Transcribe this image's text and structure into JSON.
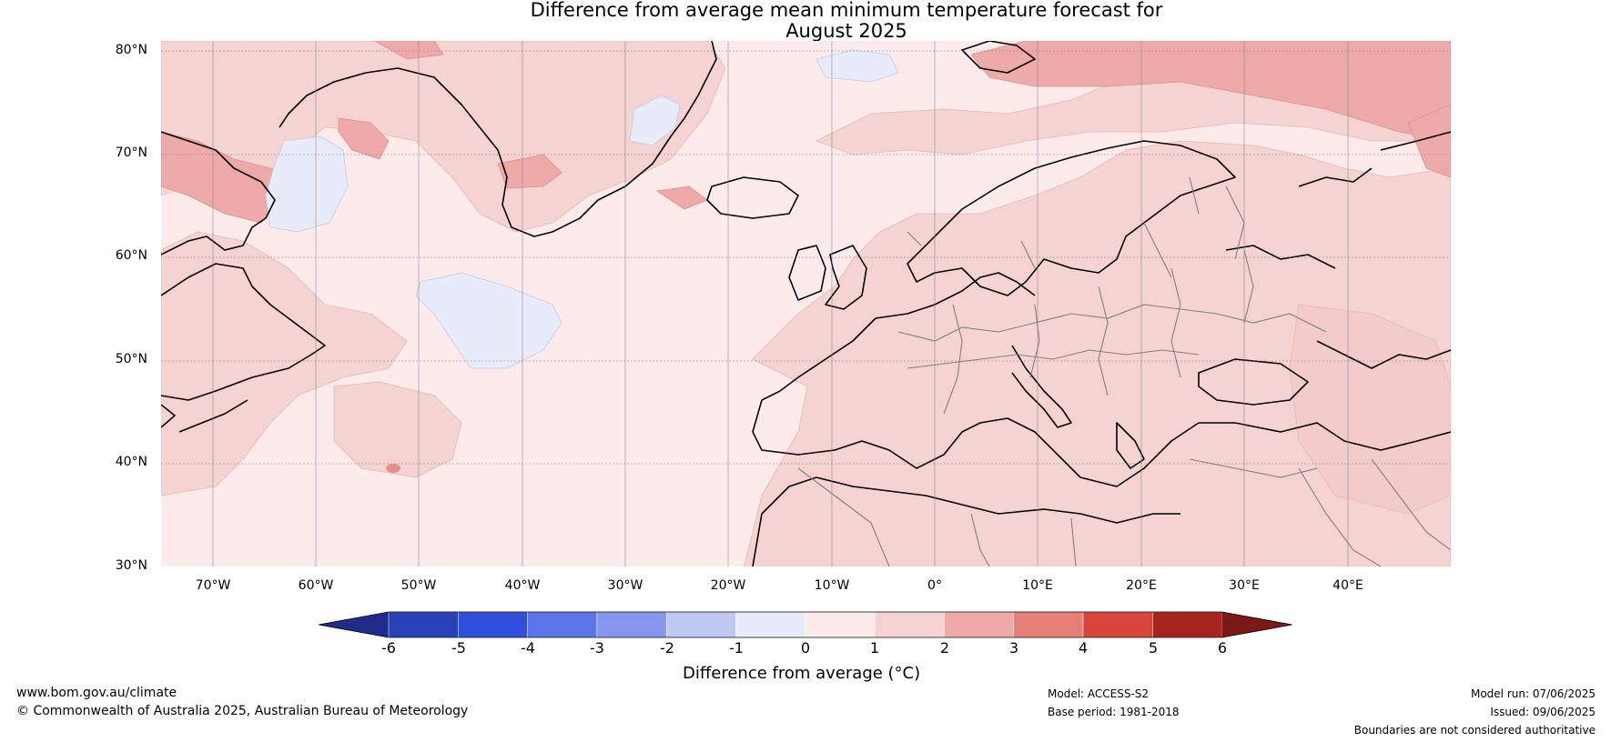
{
  "title": {
    "line1": "Difference from average mean minimum temperature forecast for",
    "line2": "August 2025"
  },
  "map": {
    "region": "North Atlantic and Europe",
    "latitude_labels": [
      "80°N",
      "70°N",
      "60°N",
      "50°N",
      "40°N",
      "30°N"
    ],
    "longitude_labels": [
      "70°W",
      "60°W",
      "50°W",
      "40°W",
      "30°W",
      "20°W",
      "10°W",
      "0°",
      "10°E",
      "20°E",
      "30°E",
      "40°E"
    ],
    "extent": {
      "lon_min": -75,
      "lon_max": 50,
      "lat_min": 30,
      "lat_max": 81
    },
    "colors": {
      "background_0_to_1": "#fcebea",
      "band_1_to_2": "#f5d3d2",
      "band_2_to_3": "#eeaaa8",
      "band_neg1_to_0": "#e8ecfa",
      "coastline": "#000000",
      "borders": "#808080",
      "gridlines": "#7f7f7f"
    }
  },
  "colorbar": {
    "tick_labels": [
      "-6",
      "-5",
      "-4",
      "-3",
      "-2",
      "-1",
      "0",
      "1",
      "2",
      "3",
      "4",
      "5",
      "6"
    ],
    "colors": [
      "#1f2c8a",
      "#2840b8",
      "#2f4fdc",
      "#5c74e8",
      "#8596ec",
      "#bfc8f3",
      "#e8ecfa",
      "#fcebea",
      "#f5d3d2",
      "#eeaaa8",
      "#e57f78",
      "#d9453a",
      "#a8251f",
      "#7a1915"
    ],
    "label": "Difference from average (°C)"
  },
  "footer": {
    "website": "www.bom.gov.au/climate",
    "copyright": "© Commonwealth of Australia 2025, Australian Bureau of Meteorology",
    "model": "Model: ACCESS-S2",
    "base_period": "Base period: 1981-2018",
    "model_run": "Model run: 07/06/2025",
    "issued": "Issued: 09/06/2025",
    "disclaimer": "Boundaries are not considered authoritative"
  }
}
